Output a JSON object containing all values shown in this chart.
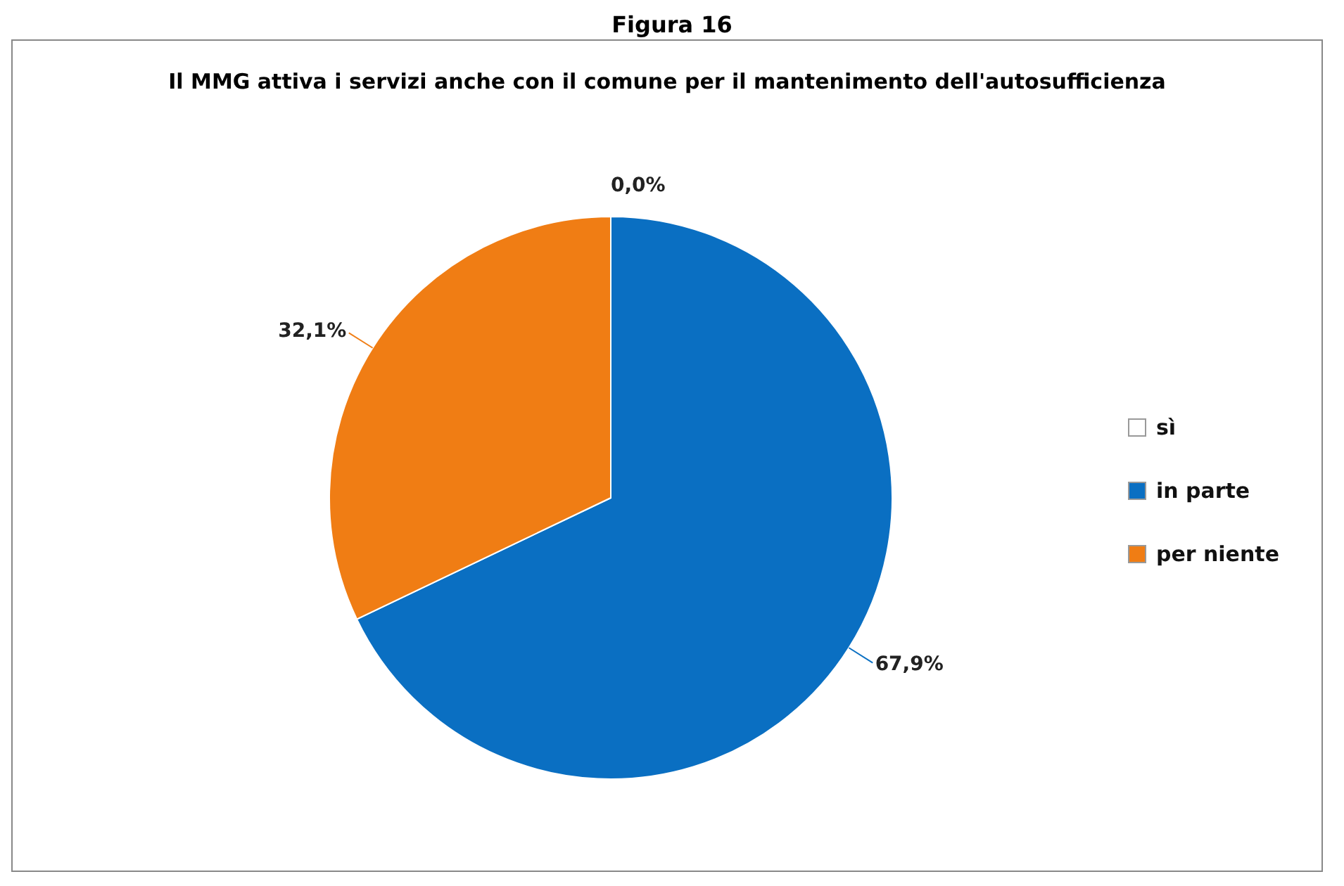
{
  "chart_data": {
    "type": "pie",
    "title": "Figura 16",
    "subtitle": "Il MMG attiva i servizi anche con il comune per il mantenimento dell'autosufficienza",
    "categories": [
      "sì",
      "in parte",
      "per niente"
    ],
    "values": [
      0,
      67.9,
      32.1
    ],
    "value_labels": [
      "0,0%",
      "67,9%",
      "32,1%"
    ],
    "colors": [
      "#ffffff",
      "#0a6fc2",
      "#f07d14"
    ],
    "legend": "right"
  }
}
